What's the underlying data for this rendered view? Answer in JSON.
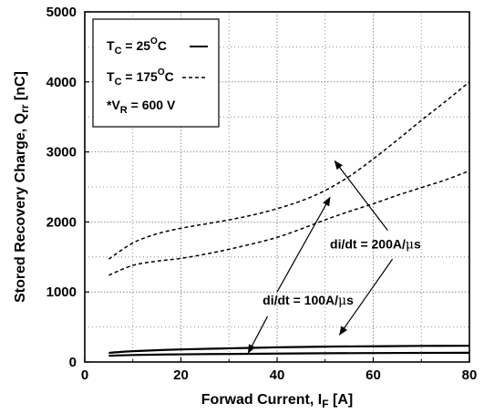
{
  "chart_data": {
    "type": "line",
    "xlabel": "Forwad Current, I",
    "xlabel_sub": "F",
    "xlabel_unit": " [A]",
    "ylabel": "Stored Recovery Charge, Q",
    "ylabel_sub": "rr",
    "ylabel_unit": " [nC]",
    "xlim": [
      0,
      80
    ],
    "ylim": [
      0,
      5000
    ],
    "x_ticks": [
      0,
      20,
      40,
      60,
      80
    ],
    "y_ticks": [
      0,
      1000,
      2000,
      3000,
      4000,
      5000
    ],
    "grid": "dotted",
    "legend": {
      "placement": "top-left",
      "entries": [
        {
          "label": "T",
          "sub": "C",
          "rest": " = 25",
          "sup": "O",
          "tail": "C",
          "style": "solid"
        },
        {
          "label": "T",
          "sub": "C",
          "rest": " = 175",
          "sup": "O",
          "tail": "C",
          "style": "dashed"
        }
      ],
      "note": {
        "prefix": "*V",
        "sub": "R",
        "rest": " = 600 V"
      }
    },
    "series": [
      {
        "style": "solid",
        "x": [
          5,
          10,
          20,
          30,
          40,
          50,
          60,
          70,
          80
        ],
        "y": [
          130,
          155,
          180,
          195,
          210,
          220,
          225,
          230,
          232
        ]
      },
      {
        "style": "solid",
        "x": [
          5,
          10,
          20,
          30,
          40,
          50,
          60,
          70,
          80
        ],
        "y": [
          90,
          100,
          110,
          115,
          120,
          125,
          128,
          130,
          132
        ]
      },
      {
        "style": "dashed",
        "x": [
          5,
          10,
          15,
          20,
          25,
          30,
          35,
          40,
          45,
          50,
          55,
          60,
          65,
          70,
          75,
          80
        ],
        "y": [
          1470,
          1700,
          1830,
          1910,
          1970,
          2030,
          2100,
          2190,
          2300,
          2450,
          2650,
          2900,
          3170,
          3450,
          3720,
          4000
        ]
      },
      {
        "style": "dashed",
        "x": [
          5,
          10,
          15,
          20,
          25,
          30,
          35,
          40,
          45,
          50,
          55,
          60,
          65,
          70,
          75,
          80
        ],
        "y": [
          1240,
          1380,
          1440,
          1480,
          1540,
          1610,
          1690,
          1780,
          1900,
          2030,
          2150,
          2260,
          2380,
          2490,
          2600,
          2730
        ]
      }
    ],
    "annotations": [
      {
        "text_prefix": "di/dt = 100A/",
        "text_mu": "μ",
        "text_suffix": "s",
        "x": 37,
        "y": 820,
        "arrows": [
          {
            "from": [
              40,
              1000
            ],
            "to": [
              51,
              2350
            ]
          },
          {
            "from": [
              38,
              650
            ],
            "to": [
              34,
              130
            ]
          }
        ]
      },
      {
        "text_prefix": "di/dt = 200A/",
        "text_mu": "μ",
        "text_suffix": "s",
        "x": 51,
        "y": 1620,
        "arrows": [
          {
            "from": [
              63,
              1880
            ],
            "to": [
              52,
              2870
            ]
          },
          {
            "from": [
              64,
              1470
            ],
            "to": [
              53,
              390
            ]
          }
        ]
      }
    ]
  }
}
